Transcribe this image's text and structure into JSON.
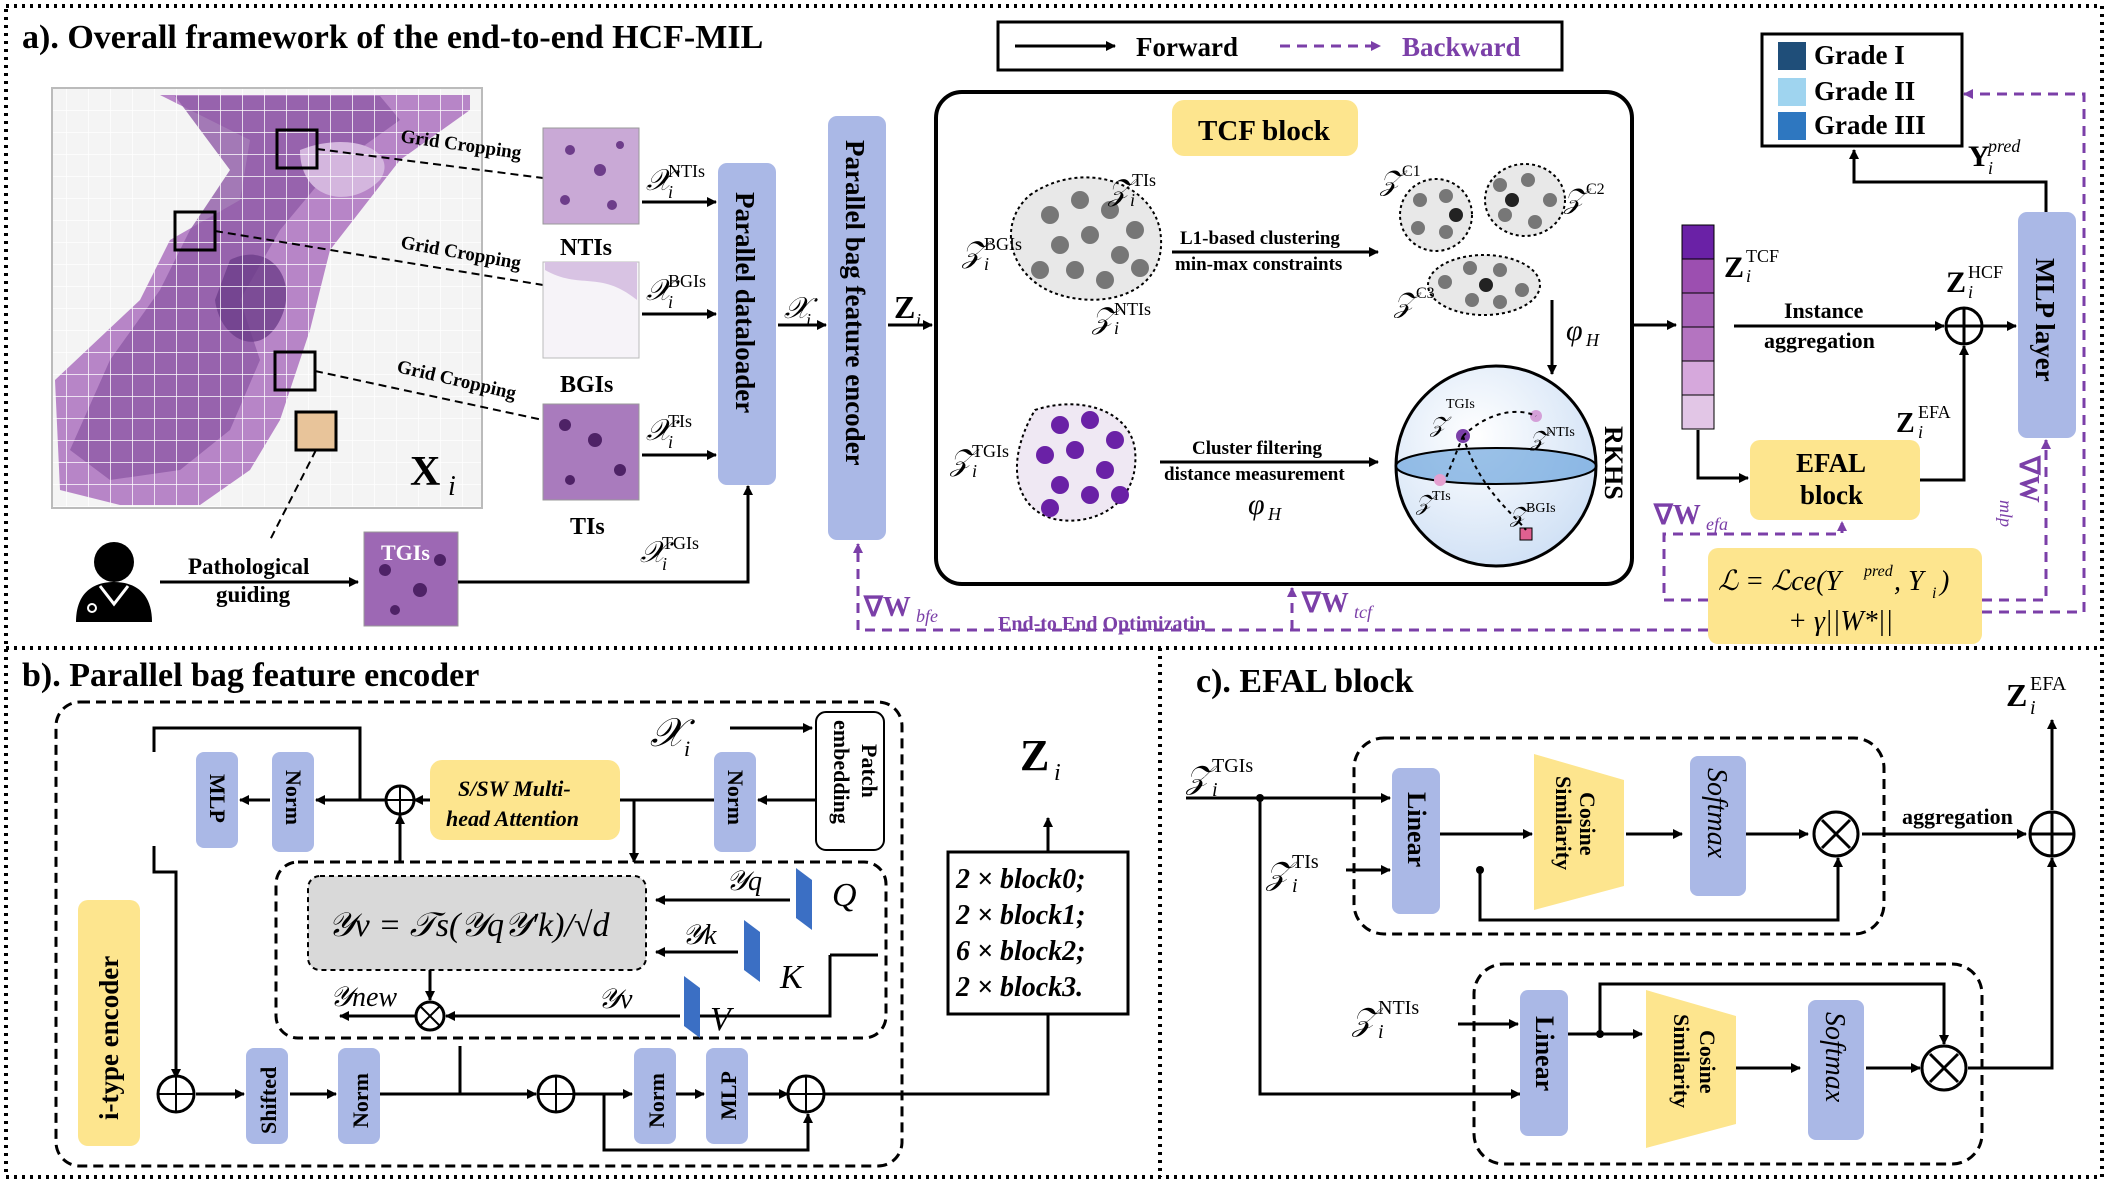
{
  "panel_a": {
    "title": "a). Overall framework of the end-to-end HCF-MIL",
    "legend": {
      "forward": "Forward",
      "backward": "Backward"
    },
    "wsi_label": "X",
    "wsi_sub": "i",
    "grid_cropping": "Grid Cropping",
    "patch_labels": {
      "ntis": "NTIs",
      "bgis": "BGIs",
      "tis": "TIs",
      "tgis": "TGIs"
    },
    "pathological_guiding": [
      "Pathological",
      "guiding"
    ],
    "x_sets": {
      "ntis": "NTIs",
      "bgis": "BGIs",
      "tis": "TIs",
      "tgis": "TGIs"
    },
    "parallel_dataloader": "Parallel dataloader",
    "parallel_bag_encoder": "Parallel bag feature encoder",
    "tcf_block": "TCF block",
    "l1_clustering": [
      "L1-based clustering",
      "min-max constraints"
    ],
    "cluster_filtering": [
      "Cluster filtering",
      "distance measurement"
    ],
    "phi_h": "φ",
    "phi_sub": "H",
    "rkhs": "RKHS",
    "cluster_labels": {
      "c1": "C1",
      "c2": "C2",
      "c3": "C3"
    },
    "z_tcf_sup": "TCF",
    "z_hcf_sup": "HCF",
    "z_efa_sup": "EFA",
    "instance_aggregation": [
      "Instance",
      "aggregation"
    ],
    "mlp_layer": "MLP layer",
    "efal_block": [
      "EFAL",
      "block"
    ],
    "grades": [
      "Grade I",
      "Grade II",
      "Grade III"
    ],
    "grade_colors": [
      "#1f4e79",
      "#9fd4ef",
      "#2e77c0"
    ],
    "y_pred_sup": "pred",
    "loss_line1": "ℒ = ℒce(Y",
    "loss_line2": "+ γ||W*||",
    "grad_efa": "∇W",
    "grad_efa_sub": "efa",
    "grad_mlp_sub": "mlp",
    "grad_bfe_sub": "bfe",
    "grad_tcf_sub": "tcf",
    "end_to_end": "End-to End Optimizatin"
  },
  "panel_b": {
    "title": "b). Parallel bag feature encoder",
    "x_i": "𝒳",
    "z_i": "Z",
    "patch_embedding": [
      "Patch",
      "embedding"
    ],
    "norm": "Norm",
    "mlp": "MLP",
    "shifted": "Shifted",
    "attention": [
      "S/SW Multi-",
      "head Attention"
    ],
    "formula": "𝒴v = 𝒯s(𝒴q𝒴′k)/√d",
    "q": "Q",
    "k": "K",
    "v": "V",
    "y_q": "𝒴q",
    "y_k": "𝒴k",
    "y_v": "𝒴v",
    "y_new": "𝒴new",
    "i_type_encoder": "i-type encoder",
    "blocks": [
      "2 × block0;",
      "2 × block1;",
      "6 × block2;",
      "2 × block3."
    ]
  },
  "panel_c": {
    "title": "c). EFAL block",
    "z_tgis_sup": "TGIs",
    "z_tis_sup": "TIs",
    "z_ntis_sup": "NTIs",
    "z_efa_sup": "EFA",
    "linear": "Linear",
    "cosine": [
      "Cosine",
      "Similarity"
    ],
    "softmax": "Softmax",
    "aggregation": "aggregation"
  },
  "colors": {
    "blue_box": "#aab8e6",
    "yellow_box": "#fde58e",
    "purple": "#7b3fa8",
    "dashed_border": "#000000"
  }
}
